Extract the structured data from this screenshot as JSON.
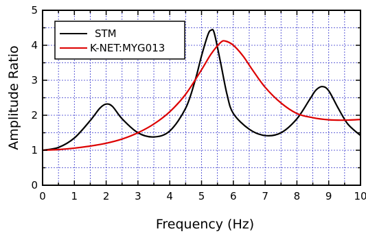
{
  "chart_data": {
    "type": "line",
    "title": "",
    "xlabel": "Frequency (Hz)",
    "ylabel": "Amplitude Ratio",
    "xlim": [
      0,
      10
    ],
    "ylim": [
      0,
      5
    ],
    "xticks": [
      0,
      1,
      2,
      3,
      4,
      5,
      6,
      7,
      8,
      9,
      10
    ],
    "yticks": [
      0,
      1,
      2,
      3,
      4,
      5
    ],
    "grid": true,
    "legend_position": "top-left",
    "series": [
      {
        "name": "STM",
        "color": "#000000",
        "x": [
          0,
          0.5,
          1.0,
          1.5,
          1.8,
          2.0,
          2.2,
          2.5,
          3.0,
          3.5,
          4.0,
          4.5,
          4.8,
          5.0,
          5.2,
          5.3,
          5.4,
          5.6,
          5.8,
          6.0,
          6.5,
          7.0,
          7.5,
          8.0,
          8.4,
          8.6,
          8.8,
          9.0,
          9.3,
          9.6,
          10.0
        ],
        "y": [
          1.0,
          1.08,
          1.35,
          1.85,
          2.2,
          2.32,
          2.25,
          1.9,
          1.5,
          1.38,
          1.55,
          2.2,
          3.0,
          3.7,
          4.3,
          4.43,
          4.35,
          3.5,
          2.6,
          2.05,
          1.6,
          1.42,
          1.5,
          1.9,
          2.45,
          2.72,
          2.82,
          2.7,
          2.2,
          1.75,
          1.42
        ]
      },
      {
        "name": "K-NET:MYG013",
        "color": "#dd0000",
        "x": [
          0,
          0.5,
          1.0,
          1.5,
          2.0,
          2.5,
          3.0,
          3.5,
          4.0,
          4.5,
          5.0,
          5.3,
          5.6,
          5.75,
          6.0,
          6.3,
          6.6,
          7.0,
          7.5,
          8.0,
          8.5,
          9.0,
          9.5,
          10.0
        ],
        "y": [
          1.0,
          1.02,
          1.06,
          1.12,
          1.2,
          1.32,
          1.5,
          1.75,
          2.1,
          2.6,
          3.3,
          3.75,
          4.08,
          4.12,
          4.0,
          3.7,
          3.3,
          2.8,
          2.35,
          2.05,
          1.93,
          1.87,
          1.86,
          1.88
        ]
      }
    ]
  }
}
